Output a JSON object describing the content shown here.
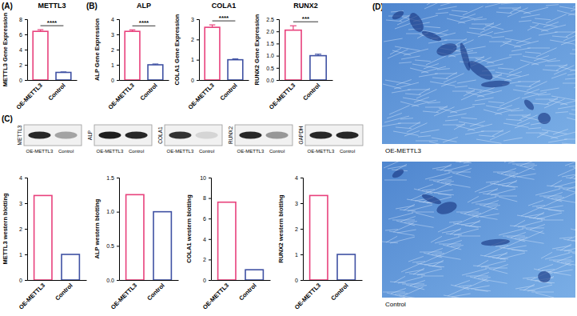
{
  "chart_data": [
    {
      "type": "bar",
      "title": "METTL3",
      "y_label": "METTL3 Gene Expression",
      "categories": [
        "OE-METTL3",
        "Control"
      ],
      "values": [
        6.4,
        1.0
      ],
      "errors": [
        0.22,
        0.06
      ],
      "colors": [
        "#e8417c",
        "#3f51a3"
      ],
      "ylim": [
        0,
        8
      ],
      "yticks": [
        0,
        2,
        4,
        6,
        8
      ],
      "annotations": [
        "****"
      ]
    },
    {
      "type": "bar",
      "title": "ALP",
      "y_label": "ALP Gene Expression",
      "categories": [
        "OE-METTL3",
        "Control"
      ],
      "values": [
        3.2,
        1.0
      ],
      "errors": [
        0.1,
        0.05
      ],
      "colors": [
        "#e8417c",
        "#3f51a3"
      ],
      "ylim": [
        0,
        4
      ],
      "yticks": [
        0,
        1,
        2,
        3,
        4
      ],
      "annotations": [
        "****"
      ]
    },
    {
      "type": "bar",
      "title": "COLA1",
      "y_label": "COLA1 Gene Expression",
      "categories": [
        "OE-METTL3",
        "Control"
      ],
      "values": [
        2.6,
        1.0
      ],
      "errors": [
        0.12,
        0.04
      ],
      "colors": [
        "#e8417c",
        "#3f51a3"
      ],
      "ylim": [
        0,
        3
      ],
      "yticks": [
        0,
        1,
        2,
        3
      ],
      "annotations": [
        "****"
      ]
    },
    {
      "type": "bar",
      "title": "RUNX2",
      "y_label": "RUNX2 Gene Expression",
      "categories": [
        "OE-METTL3",
        "Control"
      ],
      "values": [
        2.05,
        1.0
      ],
      "errors": [
        0.18,
        0.06
      ],
      "colors": [
        "#e8417c",
        "#3f51a3"
      ],
      "ylim": [
        0,
        2.5
      ],
      "yticks": [
        {
          "value": 0,
          "label": "0.0"
        },
        0.5,
        {
          "value": 1,
          "label": "1.0"
        },
        1.5,
        {
          "value": 2,
          "label": "2.0"
        },
        2.5
      ],
      "annotations": [
        "***"
      ]
    },
    {
      "type": "bar",
      "y_label": "METTL3 western blotting",
      "categories": [
        "OE-METTL3",
        "Control"
      ],
      "values": [
        3.3,
        1.0
      ],
      "colors": [
        "#e8417c",
        "#3f51a3"
      ],
      "ylim": [
        0,
        4
      ],
      "yticks": [
        0,
        1,
        2,
        3,
        4
      ]
    },
    {
      "type": "bar",
      "y_label": "ALP western blotting",
      "categories": [
        "OE-METTL3",
        "Control"
      ],
      "values": [
        1.25,
        1.0
      ],
      "colors": [
        "#e8417c",
        "#3f51a3"
      ],
      "ylim": [
        0,
        1.5
      ],
      "yticks": [
        {
          "value": 0,
          "label": "0.0"
        },
        0.5,
        {
          "value": 1,
          "label": "1.0"
        },
        1.5
      ]
    },
    {
      "type": "bar",
      "y_label": "COLA1 western blotting",
      "categories": [
        "OE-METTL3",
        "Control"
      ],
      "values": [
        7.6,
        1.0
      ],
      "colors": [
        "#e8417c",
        "#3f51a3"
      ],
      "ylim": [
        0,
        10
      ],
      "yticks": [
        0,
        2,
        4,
        6,
        8,
        10
      ]
    },
    {
      "type": "bar",
      "y_label": "RUNX2 western blotting",
      "categories": [
        "OE-METTL3",
        "Control"
      ],
      "values": [
        3.3,
        1.0
      ],
      "colors": [
        "#e8417c",
        "#3f51a3"
      ],
      "ylim": [
        0,
        4
      ],
      "yticks": [
        0,
        1,
        2,
        3,
        4
      ]
    }
  ],
  "panel_labels": [
    "(A)",
    "(B)",
    "(C)",
    "(D)"
  ],
  "blots": {
    "targets": [
      "METTL3",
      "ALP",
      "COLA1",
      "RUNX2",
      "GAPDH"
    ],
    "lanes": [
      "OE-METTL3",
      "Control"
    ]
  },
  "micrographs": {
    "captions": [
      "OE-METTL3",
      "Control"
    ]
  }
}
